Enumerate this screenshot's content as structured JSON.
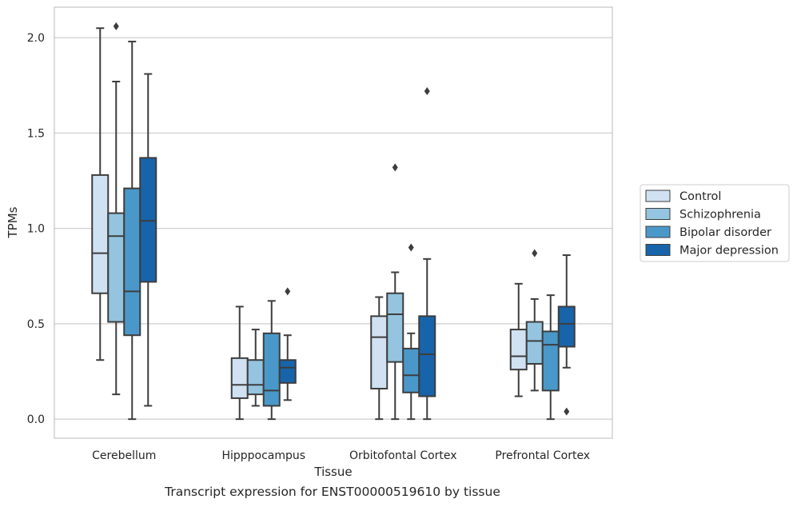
{
  "caption": "Transcript expression for ENST00000519610 by tissue",
  "colors": {
    "series": [
      "#d0e1f2",
      "#94c4df",
      "#4a98c9",
      "#1764ab"
    ],
    "stroke": "#3d3d3d",
    "grid": "#cfcfcf",
    "frame": "#c8c8c8"
  },
  "chart_data": {
    "type": "box",
    "xlabel": "Tissue",
    "ylabel": "TPMs",
    "ylim": [
      -0.1,
      2.16
    ],
    "yticks": [
      0.0,
      0.5,
      1.0,
      1.5,
      2.0
    ],
    "ytick_labels": [
      "0.0",
      "0.5",
      "1.0",
      "1.5",
      "2.0"
    ],
    "grid": "horizontal",
    "legend_position": "outside-right",
    "categories": [
      "Cerebellum",
      "Hipppocampus",
      "Orbitofontal Cortex",
      "Prefrontal Cortex"
    ],
    "series": [
      {
        "name": "Control",
        "boxes": [
          {
            "whislo": 0.31,
            "q1": 0.66,
            "med": 0.87,
            "q3": 1.28,
            "whishi": 2.05,
            "fliers": []
          },
          {
            "whislo": 0.0,
            "q1": 0.11,
            "med": 0.18,
            "q3": 0.32,
            "whishi": 0.59,
            "fliers": []
          },
          {
            "whislo": 0.0,
            "q1": 0.16,
            "med": 0.43,
            "q3": 0.54,
            "whishi": 0.64,
            "fliers": []
          },
          {
            "whislo": 0.12,
            "q1": 0.26,
            "med": 0.33,
            "q3": 0.47,
            "whishi": 0.71,
            "fliers": []
          }
        ]
      },
      {
        "name": "Schizophrenia",
        "boxes": [
          {
            "whislo": 0.13,
            "q1": 0.51,
            "med": 0.96,
            "q3": 1.08,
            "whishi": 1.77,
            "fliers": [
              2.06
            ]
          },
          {
            "whislo": 0.07,
            "q1": 0.13,
            "med": 0.18,
            "q3": 0.31,
            "whishi": 0.47,
            "fliers": []
          },
          {
            "whislo": 0.0,
            "q1": 0.3,
            "med": 0.55,
            "q3": 0.66,
            "whishi": 0.77,
            "fliers": [
              1.32
            ]
          },
          {
            "whislo": 0.15,
            "q1": 0.29,
            "med": 0.41,
            "q3": 0.51,
            "whishi": 0.63,
            "fliers": [
              0.87
            ]
          }
        ]
      },
      {
        "name": "Bipolar disorder",
        "boxes": [
          {
            "whislo": 0.0,
            "q1": 0.44,
            "med": 0.67,
            "q3": 1.21,
            "whishi": 1.98,
            "fliers": []
          },
          {
            "whislo": 0.0,
            "q1": 0.07,
            "med": 0.15,
            "q3": 0.45,
            "whishi": 0.62,
            "fliers": []
          },
          {
            "whislo": 0.0,
            "q1": 0.14,
            "med": 0.23,
            "q3": 0.37,
            "whishi": 0.45,
            "fliers": [
              0.9
            ]
          },
          {
            "whislo": 0.0,
            "q1": 0.15,
            "med": 0.39,
            "q3": 0.46,
            "whishi": 0.65,
            "fliers": []
          }
        ]
      },
      {
        "name": "Major depression",
        "boxes": [
          {
            "whislo": 0.07,
            "q1": 0.72,
            "med": 1.04,
            "q3": 1.37,
            "whishi": 1.81,
            "fliers": []
          },
          {
            "whislo": 0.1,
            "q1": 0.19,
            "med": 0.27,
            "q3": 0.31,
            "whishi": 0.44,
            "fliers": [
              0.67
            ]
          },
          {
            "whislo": 0.0,
            "q1": 0.12,
            "med": 0.34,
            "q3": 0.54,
            "whishi": 0.84,
            "fliers": [
              1.72
            ]
          },
          {
            "whislo": 0.27,
            "q1": 0.38,
            "med": 0.5,
            "q3": 0.59,
            "whishi": 0.86,
            "fliers": [
              0.04
            ]
          }
        ]
      }
    ]
  }
}
